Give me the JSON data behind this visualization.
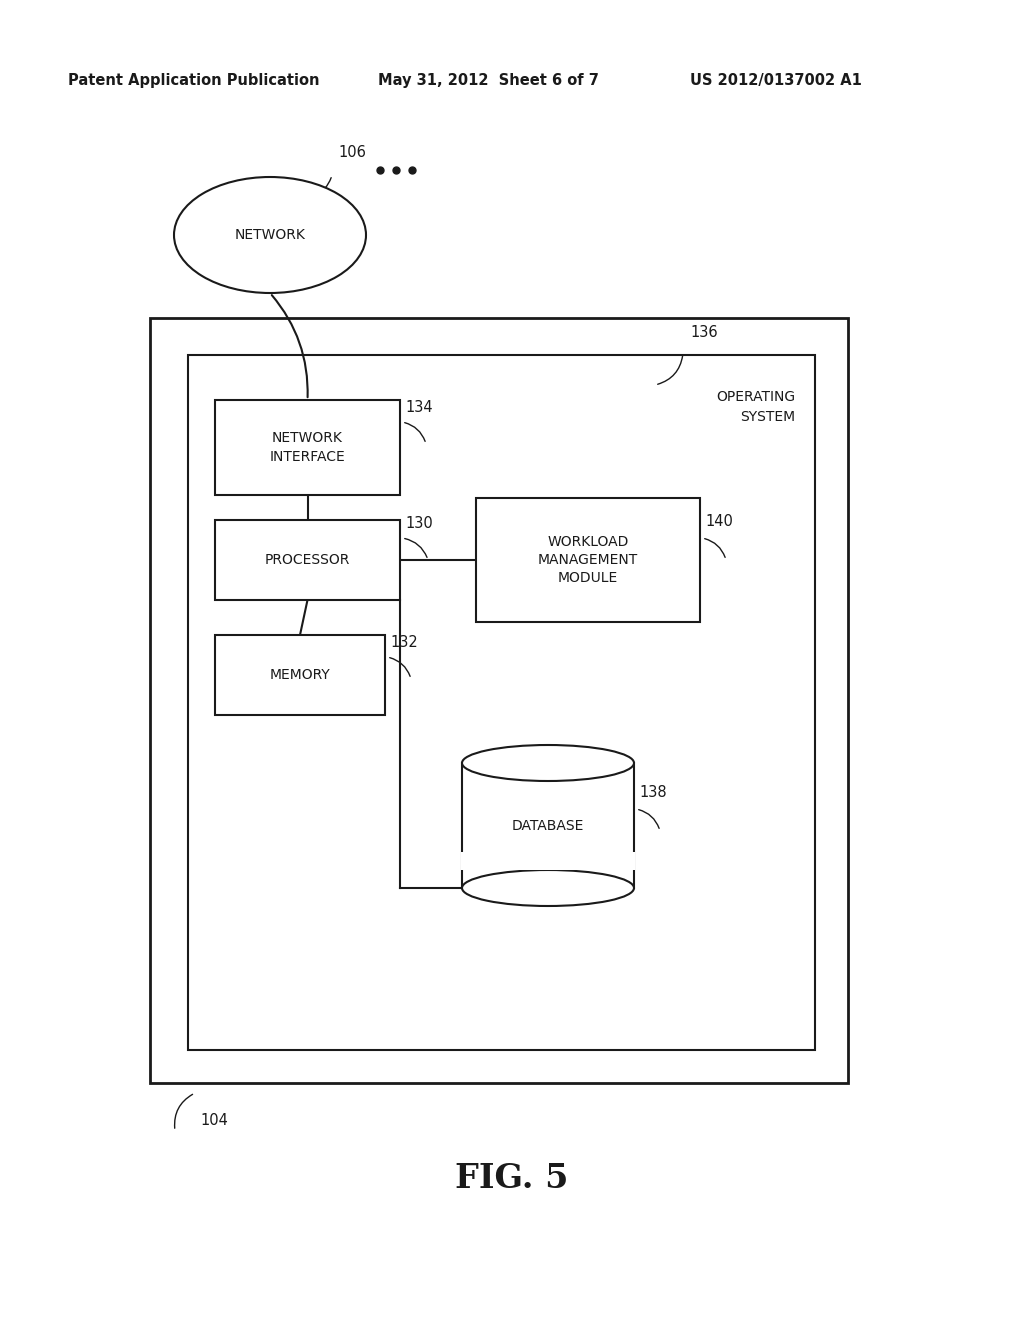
{
  "header_left": "Patent Application Publication",
  "header_mid": "May 31, 2012  Sheet 6 of 7",
  "header_right": "US 2012/0137002 A1",
  "fig_label": "FIG. 5",
  "bg_color": "#ffffff",
  "line_color": "#1a1a1a",
  "text_color": "#1a1a1a",
  "network_label": "NETWORK",
  "network_ref": "106",
  "outer_box_ref": "104",
  "inner_box_ref": "136",
  "os_label": "OPERATING\nSYSTEM",
  "ni_label": "NETWORK\nINTERFACE",
  "ni_ref": "134",
  "proc_label": "PROCESSOR",
  "proc_ref": "130",
  "mem_label": "MEMORY",
  "mem_ref": "132",
  "wmm_label": "WORKLOAD\nMANAGEMENT\nMODULE",
  "wmm_ref": "140",
  "db_label": "DATABASE",
  "db_ref": "138",
  "header_fontsize": 10.5,
  "body_fontsize": 10,
  "ref_fontsize": 10.5,
  "fig_fontsize": 24
}
